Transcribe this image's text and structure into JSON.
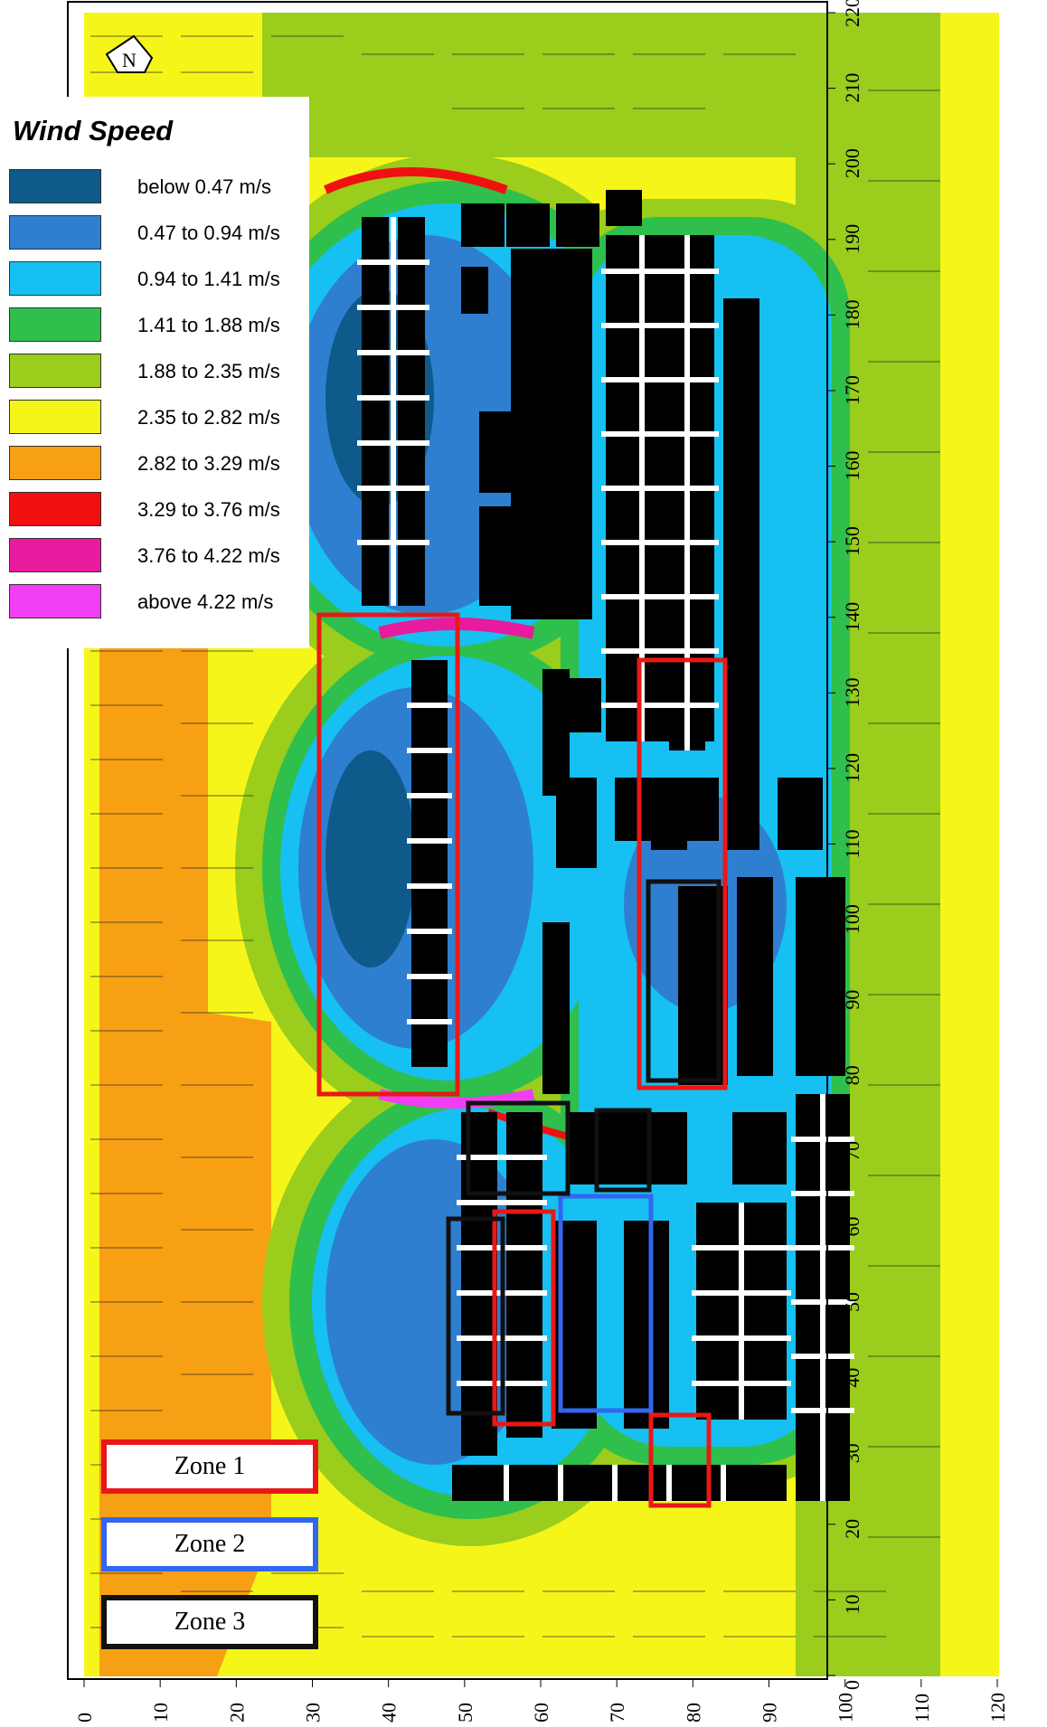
{
  "legend": {
    "title": "Wind Speed",
    "items": [
      {
        "label": "below 0.47 m/s",
        "color": "#0e5a8a"
      },
      {
        "label": "0.47 to 0.94 m/s",
        "color": "#2f7fd0"
      },
      {
        "label": "0.94 to 1.41 m/s",
        "color": "#16c0f2"
      },
      {
        "label": "1.41 to 1.88 m/s",
        "color": "#2fbf4c"
      },
      {
        "label": "1.88 to 2.35 m/s",
        "color": "#9acd1c"
      },
      {
        "label": "2.35 to 2.82 m/s",
        "color": "#f5f51a"
      },
      {
        "label": "2.82 to 3.29 m/s",
        "color": "#f7a014"
      },
      {
        "label": "3.29 to 3.76 m/s",
        "color": "#f01010"
      },
      {
        "label": "3.76 to 4.22 m/s",
        "color": "#e81a9e"
      },
      {
        "label": "above 4.22 m/s",
        "color": "#f23ef2"
      }
    ]
  },
  "north_label": "N",
  "zones": [
    {
      "label": "Zone 1",
      "color": "#e81818"
    },
    {
      "label": "Zone 2",
      "color": "#3366ee"
    },
    {
      "label": "Zone 3",
      "color": "#111111"
    }
  ],
  "axes": {
    "x_ticks": [
      "0",
      "10",
      "20",
      "30",
      "40",
      "50",
      "60",
      "70",
      "80",
      "90",
      "100",
      "110",
      "120"
    ],
    "y_ticks": [
      "0",
      "10",
      "20",
      "30",
      "40",
      "50",
      "60",
      "70",
      "80",
      "90",
      "100",
      "110",
      "120",
      "130",
      "140",
      "150",
      "160",
      "170",
      "180",
      "190",
      "200",
      "210",
      "220"
    ]
  }
}
